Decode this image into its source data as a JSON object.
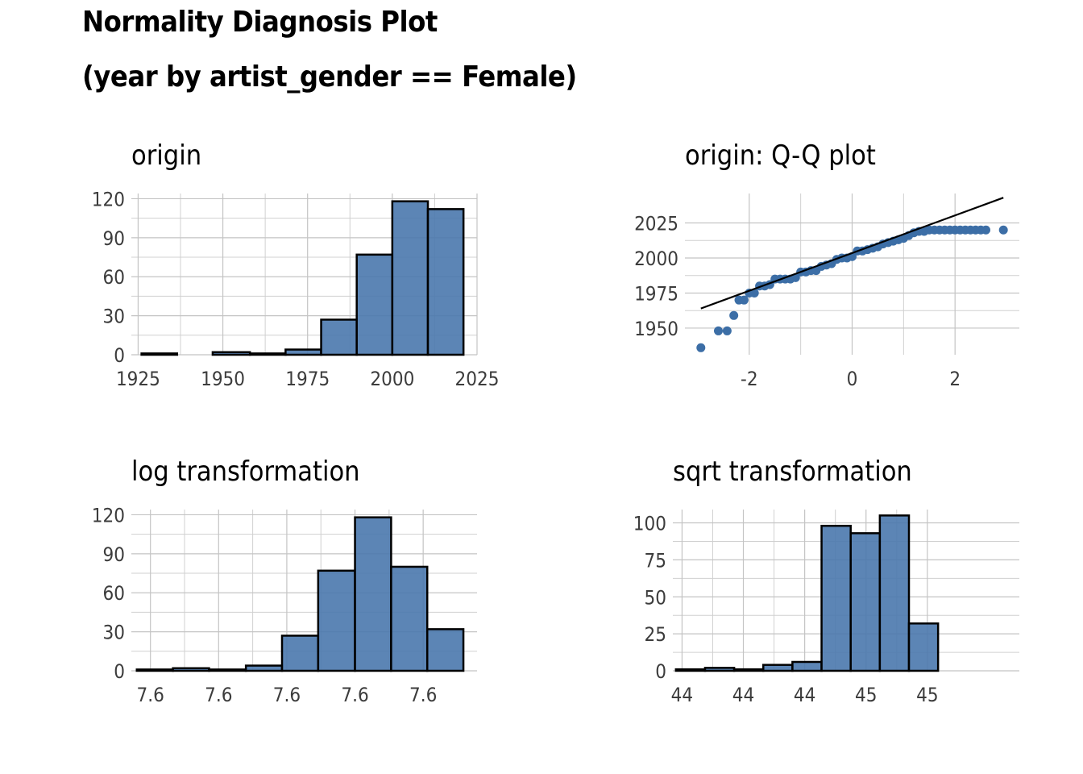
{
  "title": {
    "line1": "Normality Diagnosis Plot",
    "line2": "(year by artist_gender == Female)"
  },
  "colors": {
    "fill": "#4a78ad",
    "point": "#3c6ea6",
    "grid": "#d0d0d0",
    "outline": "#000000",
    "line": "#000000"
  },
  "chart_data": [
    {
      "id": "origin",
      "type": "bar",
      "title": "origin",
      "xlim": [
        1923,
        2025
      ],
      "ylim": [
        0,
        124
      ],
      "xticks": [
        1925,
        1950,
        1975,
        2000,
        2025
      ],
      "xtick_labels": [
        "1925",
        "1950",
        "1975",
        "2000",
        "2025"
      ],
      "yticks": [
        0,
        30,
        60,
        90,
        120
      ],
      "ytick_labels": [
        "0",
        "30",
        "60",
        "90",
        "120"
      ],
      "bins": [
        [
          1926,
          1936.5
        ],
        [
          1936.5,
          1947
        ],
        [
          1947,
          1958
        ],
        [
          1958,
          1968.5
        ],
        [
          1968.5,
          1979
        ],
        [
          1979,
          1989.5
        ],
        [
          1989.5,
          2000
        ],
        [
          2000,
          2010.5
        ],
        [
          2010.5,
          2021
        ]
      ],
      "values": [
        1,
        0,
        2,
        1,
        4,
        27,
        77,
        118,
        112
      ]
    },
    {
      "id": "qq",
      "type": "scatter",
      "title": "origin: Q-Q plot",
      "xlim": [
        -3.25,
        3.25
      ],
      "ylim": [
        1931,
        2046
      ],
      "xticks": [
        -2,
        0,
        2
      ],
      "xtick_labels": [
        "-2",
        "0",
        "2"
      ],
      "yticks": [
        1950,
        1975,
        2000,
        2025
      ],
      "ytick_labels": [
        "1950",
        "1975",
        "2000",
        "2025"
      ],
      "ref_line": [
        [
          -2.94,
          1964
        ],
        [
          2.94,
          2043
        ]
      ],
      "points": [
        [
          -2.94,
          1936
        ],
        [
          -2.6,
          1948
        ],
        [
          -2.43,
          1948
        ],
        [
          -2.3,
          1959
        ],
        [
          -2.2,
          1970
        ],
        [
          -2.1,
          1970
        ],
        [
          -2.0,
          1975
        ],
        [
          -1.9,
          1975
        ],
        [
          -1.8,
          1980
        ],
        [
          -1.7,
          1980
        ],
        [
          -1.6,
          1981
        ],
        [
          -1.5,
          1985
        ],
        [
          -1.4,
          1985
        ],
        [
          -1.3,
          1985
        ],
        [
          -1.2,
          1985
        ],
        [
          -1.1,
          1986
        ],
        [
          -1.0,
          1990
        ],
        [
          -0.9,
          1990
        ],
        [
          -0.8,
          1991
        ],
        [
          -0.7,
          1991
        ],
        [
          -0.6,
          1994
        ],
        [
          -0.5,
          1995
        ],
        [
          -0.4,
          1996
        ],
        [
          -0.3,
          1999
        ],
        [
          -0.2,
          2000
        ],
        [
          -0.1,
          2000
        ],
        [
          0.0,
          2001
        ],
        [
          0.1,
          2005
        ],
        [
          0.2,
          2005
        ],
        [
          0.3,
          2006
        ],
        [
          0.4,
          2007
        ],
        [
          0.5,
          2008
        ],
        [
          0.6,
          2010
        ],
        [
          0.7,
          2011
        ],
        [
          0.8,
          2012
        ],
        [
          0.9,
          2013
        ],
        [
          1.0,
          2014
        ],
        [
          1.1,
          2016
        ],
        [
          1.2,
          2018
        ],
        [
          1.3,
          2019
        ],
        [
          1.4,
          2019
        ],
        [
          1.5,
          2020
        ],
        [
          1.6,
          2020
        ],
        [
          1.7,
          2020
        ],
        [
          1.8,
          2020
        ],
        [
          1.9,
          2020
        ],
        [
          2.0,
          2020
        ],
        [
          2.1,
          2020
        ],
        [
          2.2,
          2020
        ],
        [
          2.3,
          2020
        ],
        [
          2.4,
          2020
        ],
        [
          2.5,
          2020
        ],
        [
          2.6,
          2020
        ],
        [
          2.94,
          2020
        ]
      ]
    },
    {
      "id": "log",
      "type": "bar",
      "title": "log transformation",
      "xlim": [
        7.5617,
        7.6124
      ],
      "ylim": [
        0,
        124
      ],
      "xticks": [
        7.5645,
        7.5745,
        7.5845,
        7.5945,
        7.6045
      ],
      "xtick_labels": [
        "7.6",
        "7.6",
        "7.6",
        "7.6",
        "7.6"
      ],
      "yticks": [
        0,
        30,
        60,
        90,
        120
      ],
      "ytick_labels": [
        "0",
        "30",
        "60",
        "90",
        "120"
      ],
      "bins": [
        [
          7.5625,
          7.5678
        ],
        [
          7.5678,
          7.5731
        ],
        [
          7.5731,
          7.5785
        ],
        [
          7.5785,
          7.5838
        ],
        [
          7.5838,
          7.5891
        ],
        [
          7.5891,
          7.5945
        ],
        [
          7.5945,
          7.5998
        ],
        [
          7.5998,
          7.6051
        ],
        [
          7.6051,
          7.6104
        ]
      ],
      "values": [
        1,
        2,
        1,
        4,
        27,
        77,
        118,
        80,
        32
      ]
    },
    {
      "id": "sqrt",
      "type": "bar",
      "title": "sqrt transformation",
      "xlim": [
        43.9,
        45.03
      ],
      "ylim": [
        0,
        109
      ],
      "xticks": [
        43.93,
        44.13,
        44.33,
        44.53,
        44.73
      ],
      "xtick_labels": [
        "44",
        "44",
        "44",
        "45",
        "45"
      ],
      "yticks": [
        0,
        25,
        50,
        75,
        100
      ],
      "ytick_labels": [
        "0",
        "25",
        "50",
        "75",
        "100"
      ],
      "bins": [
        [
          43.91,
          44.005
        ],
        [
          44.005,
          44.1
        ],
        [
          44.1,
          44.195
        ],
        [
          44.195,
          44.29
        ],
        [
          44.29,
          44.385
        ],
        [
          44.385,
          44.48
        ],
        [
          44.48,
          44.575
        ],
        [
          44.575,
          44.67
        ],
        [
          44.67,
          44.765
        ]
      ],
      "values": [
        1,
        2,
        1,
        4,
        6,
        98,
        93,
        105,
        32
      ]
    }
  ]
}
